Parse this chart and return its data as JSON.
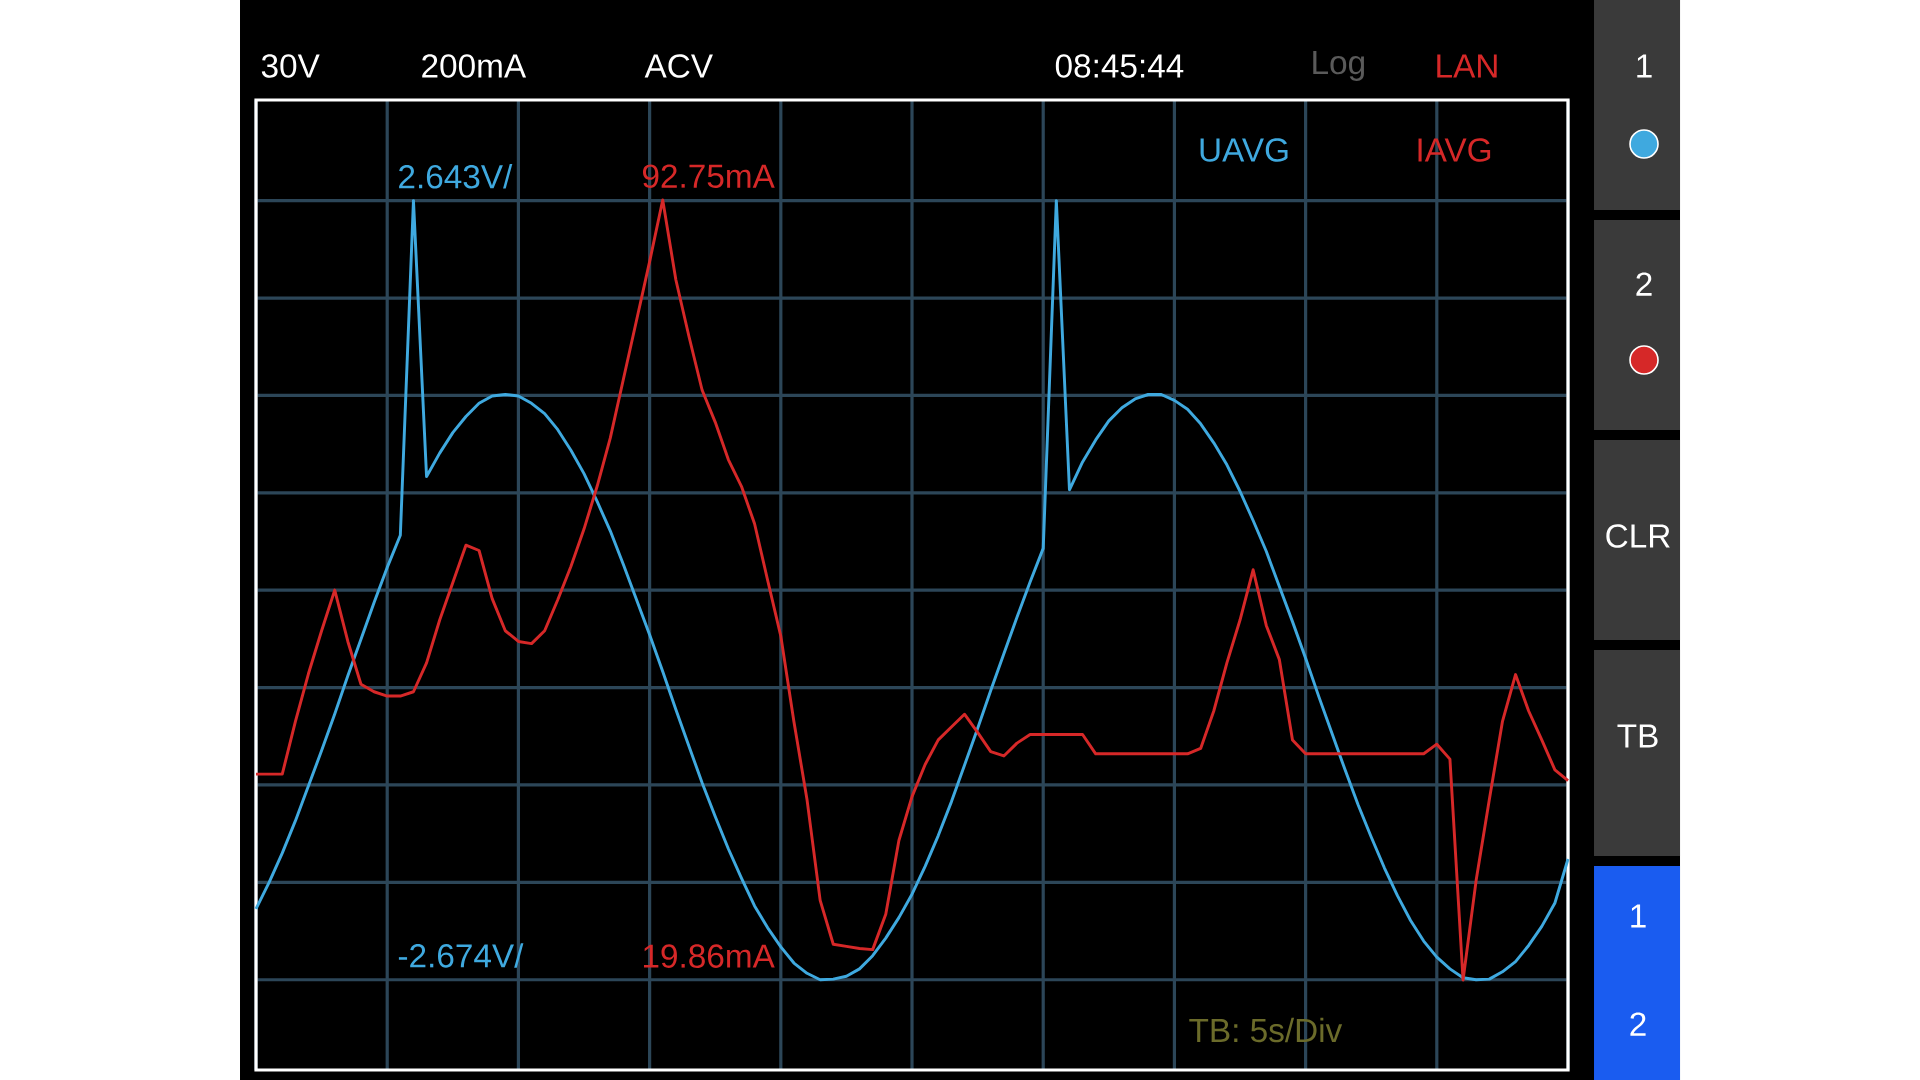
{
  "chart_data": {
    "type": "line",
    "categories": [
      null,
      null,
      null,
      null,
      null,
      null,
      null,
      null,
      null,
      null,
      null,
      null,
      null,
      null,
      null,
      null,
      null,
      null,
      null,
      null,
      null,
      null,
      null,
      null,
      null,
      null,
      null,
      null,
      null,
      null,
      null,
      null,
      null,
      null,
      null,
      null,
      null,
      null,
      null,
      null,
      null,
      null,
      null,
      null,
      null,
      null,
      null,
      null,
      null,
      null,
      null,
      null,
      null,
      null,
      null,
      null,
      null,
      null,
      null,
      null,
      null,
      null,
      null,
      null,
      null,
      null,
      null,
      null,
      null,
      null,
      null,
      null,
      null,
      null,
      null,
      null,
      null,
      null,
      null,
      null,
      null,
      null,
      null,
      null,
      null,
      null,
      null,
      null,
      null,
      null,
      null,
      null,
      null,
      null,
      null,
      null,
      null,
      null,
      null,
      null,
      null
    ],
    "ylim": [
      -3.29,
      3.33
    ],
    "yticks": [
      {
        "value": -2.674,
        "label": "-2.674V/"
      },
      {
        "value": 2.643,
        "label": "2.643V/"
      }
    ],
    "y2lim": [
      11.45,
      102.1
    ],
    "y2ticks": [
      {
        "value": 19.86,
        "label": "19.86mA"
      },
      {
        "value": 92.75,
        "label": "92.75mA"
      }
    ],
    "grid": true,
    "series": [
      {
        "name": "UAVG",
        "color": "#3fa9df",
        "values": [
          -2.19,
          -2.01,
          -1.81,
          -1.59,
          -1.35,
          -1.11,
          -0.86,
          -0.6,
          -0.35,
          -0.1,
          0.14,
          0.36,
          2.643,
          0.76,
          0.92,
          1.06,
          1.17,
          1.26,
          1.31,
          1.32,
          1.31,
          1.26,
          1.19,
          1.08,
          0.94,
          0.78,
          0.59,
          0.39,
          0.16,
          -0.08,
          -0.32,
          -0.57,
          -0.83,
          -1.08,
          -1.33,
          -1.56,
          -1.78,
          -1.98,
          -2.17,
          -2.32,
          -2.45,
          -2.56,
          -2.63,
          -2.674,
          -2.67,
          -2.65,
          -2.6,
          -2.51,
          -2.39,
          -2.25,
          -2.09,
          -1.9,
          -1.69,
          -1.46,
          -1.21,
          -0.96,
          -0.7,
          -0.45,
          -0.2,
          0.04,
          0.27,
          2.643,
          0.67,
          0.86,
          1.01,
          1.14,
          1.23,
          1.29,
          1.32,
          1.32,
          1.28,
          1.22,
          1.12,
          0.99,
          0.84,
          0.66,
          0.46,
          0.25,
          0.01,
          -0.23,
          -0.48,
          -0.74,
          -0.99,
          -1.24,
          -1.48,
          -1.7,
          -1.91,
          -2.1,
          -2.27,
          -2.41,
          -2.52,
          -2.6,
          -2.66,
          -2.674,
          -2.67,
          -2.62,
          -2.55,
          -2.44,
          -2.31,
          -2.15,
          -1.85
        ]
      },
      {
        "name": "IAVG",
        "color": "#d62828",
        "axis": "y2",
        "values": [
          39.1,
          39.1,
          39.1,
          44.0,
          48.5,
          52.5,
          56.3,
          51.5,
          47.5,
          46.8,
          46.4,
          46.4,
          46.8,
          49.5,
          53.5,
          57.0,
          60.5,
          60.0,
          55.5,
          52.5,
          51.5,
          51.3,
          52.5,
          55.4,
          58.5,
          62.0,
          66.0,
          70.5,
          76.0,
          81.5,
          87.0,
          92.75,
          85.3,
          80.0,
          75.0,
          72.0,
          68.5,
          66.0,
          62.5,
          57.2,
          52.0,
          44.0,
          36.7,
          27.3,
          23.2,
          23.0,
          22.8,
          22.7,
          26.0,
          32.9,
          37.0,
          40.0,
          42.3,
          43.5,
          44.7,
          43.0,
          41.2,
          40.8,
          42.0,
          42.8,
          42.8,
          42.8,
          42.8,
          42.8,
          41.0,
          41.0,
          41.0,
          41.0,
          41.0,
          41.0,
          41.0,
          41.0,
          41.5,
          45.0,
          49.5,
          53.5,
          58.2,
          53.0,
          49.8,
          42.3,
          41.0,
          41.0,
          41.0,
          41.0,
          41.0,
          41.0,
          41.0,
          41.0,
          41.0,
          41.0,
          41.9,
          40.5,
          19.86,
          29.2,
          36.7,
          44.0,
          48.4,
          45.0,
          42.3,
          39.5,
          38.5
        ]
      }
    ],
    "annotations": [
      "30V",
      "200mA",
      "ACV",
      "08:45:44",
      "Log",
      "LAN",
      "TB: 5s/Div",
      "1",
      "2",
      "CLR",
      "TB",
      "1",
      "2"
    ]
  }
}
